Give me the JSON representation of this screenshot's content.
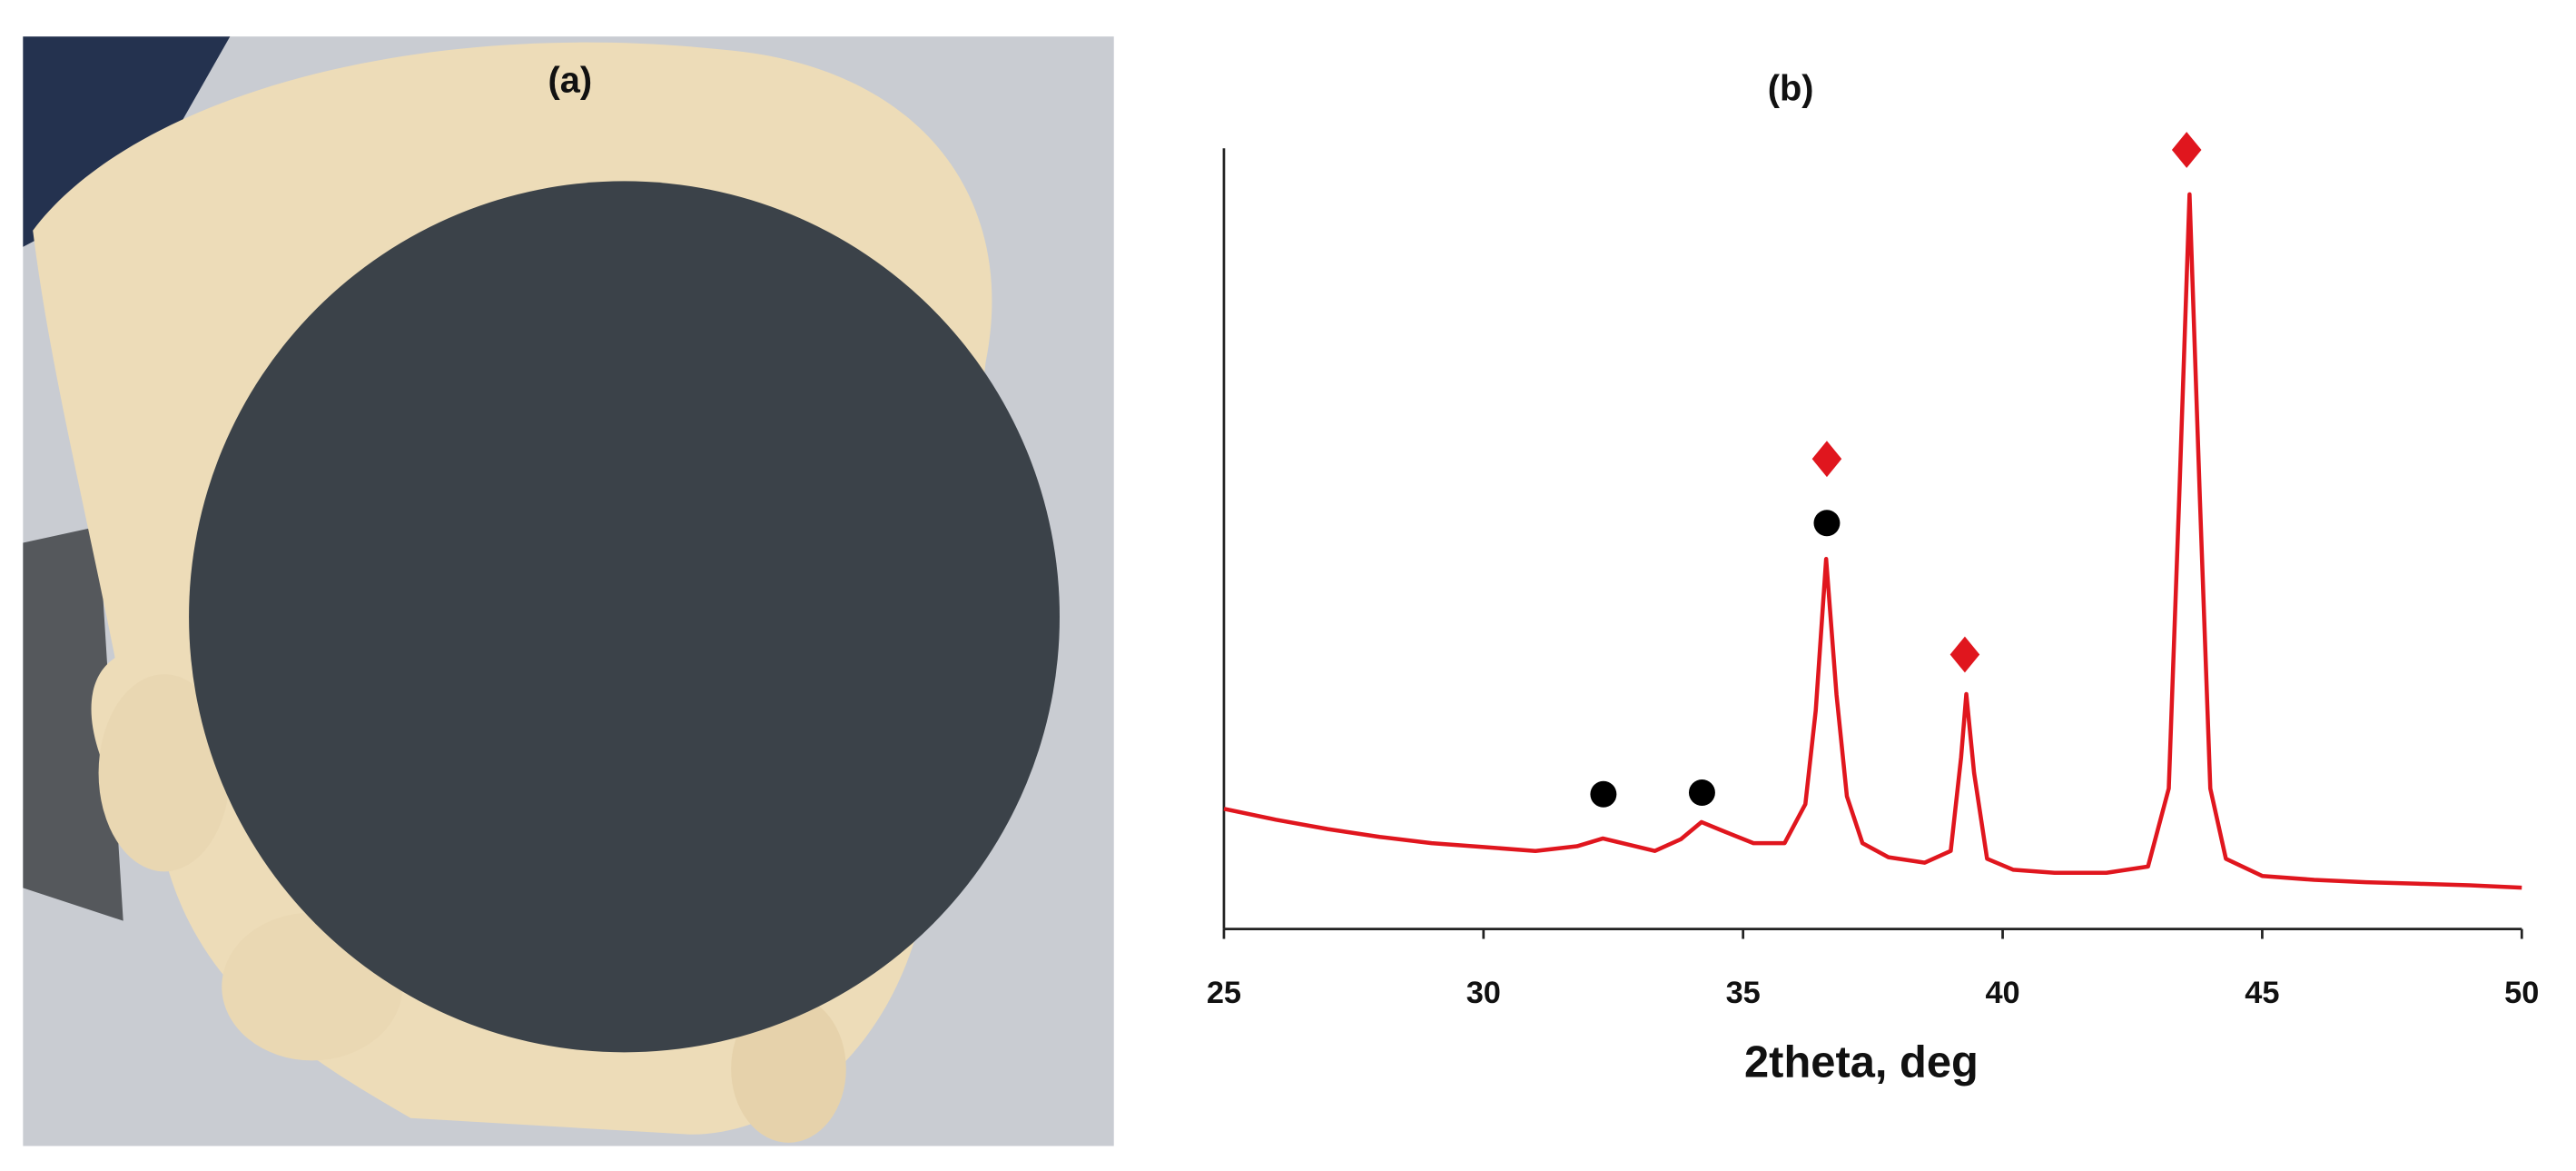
{
  "panel_a": {
    "label": "(a)"
  },
  "chart_data": {
    "type": "line",
    "title": "(b)",
    "x_label": "2theta, deg",
    "xlim": [
      25,
      50
    ],
    "xticks": [
      25,
      30,
      35,
      40,
      45,
      50
    ],
    "ylim": [
      0,
      100
    ],
    "series": [
      {
        "color": "#e0161e",
        "x": [
          25,
          26,
          27,
          28,
          29,
          30,
          31,
          31.8,
          32.3,
          32.8,
          33.3,
          33.8,
          34.2,
          34.6,
          35.2,
          35.8,
          36.2,
          36.4,
          36.6,
          36.8,
          37,
          37.3,
          37.8,
          38.5,
          39,
          39.2,
          39.3,
          39.45,
          39.7,
          40.2,
          41,
          42,
          42.8,
          43.2,
          43.4,
          43.6,
          43.8,
          44,
          44.3,
          45,
          46,
          47,
          48,
          49,
          50
        ],
        "values": [
          15.4,
          14,
          12.8,
          11.8,
          11,
          10.5,
          10,
          10.6,
          11.6,
          10.8,
          10,
          11.5,
          13.7,
          12.6,
          11,
          11,
          16,
          28,
          47.4,
          30,
          17,
          11,
          9.2,
          8.5,
          10,
          22,
          30.1,
          20,
          9,
          7.6,
          7.2,
          7.2,
          8,
          18,
          55,
          94.1,
          55,
          18,
          9,
          6.8,
          6.3,
          6,
          5.8,
          5.6,
          5.3
        ]
      }
    ]
  }
}
